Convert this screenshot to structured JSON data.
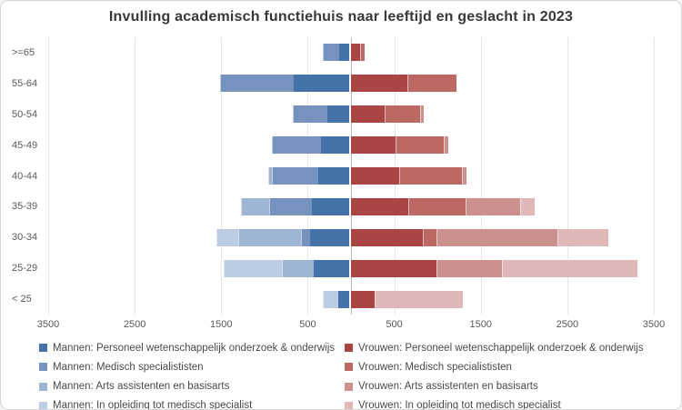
{
  "chart_data": {
    "type": "bar",
    "subtype": "horizontal-diverging-stacked-pyramid",
    "title": "Invulling academisch functiehuis naar leeftijd en geslacht in 2023",
    "categories": [
      ">=65",
      "55-64",
      "50-54",
      "45-49",
      "40-44",
      "35-39",
      "30-34",
      "25-29",
      "< 25"
    ],
    "x_axis": {
      "min": -3500,
      "max": 3500,
      "tick_values": [
        -3500,
        -2500,
        -1500,
        -500,
        500,
        1500,
        2500,
        3500
      ],
      "tick_labels": [
        "3500",
        "2500",
        "1500",
        "500",
        "500",
        "1500",
        "2500",
        "3500"
      ],
      "gridlines": true,
      "zero_line": true
    },
    "legend_position": "bottom-two-columns",
    "series": [
      {
        "name": "Mannen: Personeel wetenschappelijk onderzoek & onderwijs",
        "side": "left",
        "color": "#4472A9",
        "values": [
          120,
          640,
          250,
          330,
          360,
          430,
          450,
          410,
          130
        ]
      },
      {
        "name": "Mannen: Medisch specialististen",
        "side": "left",
        "color": "#7693C0",
        "values": [
          190,
          850,
          400,
          560,
          530,
          490,
          110,
          0,
          0
        ]
      },
      {
        "name": "Mannen: Arts assistenten en basisarts",
        "side": "left",
        "color": "#9FB5D4",
        "values": [
          0,
          0,
          0,
          0,
          50,
          330,
          720,
          370,
          0
        ]
      },
      {
        "name": "Mannen: In opleiding tot medisch specialist",
        "side": "left",
        "color": "#BCCCE2",
        "values": [
          0,
          0,
          0,
          0,
          0,
          0,
          250,
          670,
          180
        ]
      },
      {
        "name": "Vrouwen: Personeel wetenschappelijk onderzoek & onderwijs",
        "side": "right",
        "color": "#A94543",
        "values": [
          110,
          650,
          390,
          510,
          560,
          660,
          830,
          990,
          270
        ]
      },
      {
        "name": "Vrouwen: Medisch specialististen",
        "side": "right",
        "color": "#BC6966",
        "values": [
          50,
          570,
          410,
          560,
          720,
          660,
          160,
          0,
          0
        ]
      },
      {
        "name": "Vrouwen: Arts assistenten en basisarts",
        "side": "right",
        "color": "#CC908E",
        "values": [
          0,
          0,
          45,
          50,
          50,
          640,
          1400,
          760,
          0
        ]
      },
      {
        "name": "Vrouwen: In opleiding tot medisch specialist",
        "side": "right",
        "color": "#DFB8B7",
        "values": [
          0,
          0,
          0,
          0,
          0,
          160,
          580,
          1560,
          1020
        ]
      }
    ],
    "style_colors": {
      "background": "#ffffff",
      "frame_border": "#d6d6d6",
      "gridline": "#e6e6e6",
      "zero_line": "#bdbdbd",
      "axis_text": "#595959",
      "title_text": "#383838",
      "legend_text": "#4a4a4a"
    }
  }
}
